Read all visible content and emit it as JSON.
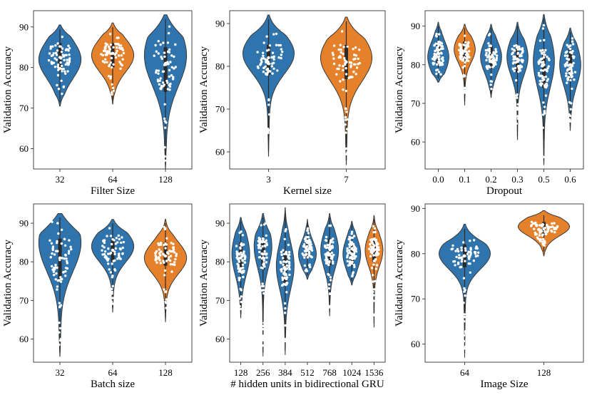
{
  "colors": {
    "blue": "#2f74ad",
    "orange": "#e5812a",
    "outline": "#3a3a3a",
    "dot": "#ffffff"
  },
  "chart_data": [
    {
      "type": "violin",
      "xlabel": "Filter Size",
      "ylabel": "Validation Accuracy",
      "ylim": [
        55,
        94
      ],
      "yticks": [
        60,
        70,
        80,
        90
      ],
      "categories": [
        "32",
        "64",
        "128"
      ],
      "series": [
        {
          "category": "32",
          "color": "blue",
          "min": 70.5,
          "max": 90.5,
          "median": 82.5,
          "q1": 79,
          "q3": 86,
          "mode": 82
        },
        {
          "category": "64",
          "color": "orange",
          "min": 71,
          "max": 91,
          "median": 83.5,
          "q1": 80,
          "q3": 86,
          "mode": 83
        },
        {
          "category": "128",
          "color": "blue",
          "min": 55,
          "max": 93,
          "median": 81,
          "q1": 74,
          "q3": 85,
          "mode": 83
        }
      ]
    },
    {
      "type": "violin",
      "xlabel": "Kernel size",
      "ylabel": "Validation Accuracy",
      "ylim": [
        56,
        93
      ],
      "yticks": [
        60,
        70,
        80,
        90
      ],
      "categories": [
        "3",
        "7"
      ],
      "series": [
        {
          "category": "3",
          "color": "blue",
          "min": 59,
          "max": 92,
          "median": 82,
          "q1": 78,
          "q3": 85,
          "mode": 83
        },
        {
          "category": "7",
          "color": "orange",
          "min": 57,
          "max": 91.5,
          "median": 81,
          "q1": 77,
          "q3": 85,
          "mode": 82
        }
      ]
    },
    {
      "type": "violin",
      "xlabel": "Dropout",
      "ylabel": "Validation Accuracy",
      "ylim": [
        53,
        94
      ],
      "yticks": [
        60,
        70,
        80,
        90
      ],
      "categories": [
        "0.0",
        "0.1",
        "0.2",
        "0.3",
        "0.5",
        "0.6"
      ],
      "series": [
        {
          "category": "0.0",
          "color": "blue",
          "min": 75.5,
          "max": 91,
          "median": 83,
          "q1": 80,
          "q3": 86,
          "mode": 82
        },
        {
          "category": "0.1",
          "color": "orange",
          "min": 69.5,
          "max": 90.5,
          "median": 83.5,
          "q1": 81,
          "q3": 86,
          "mode": 84
        },
        {
          "category": "0.2",
          "color": "blue",
          "min": 71.5,
          "max": 90.5,
          "median": 82,
          "q1": 79,
          "q3": 85,
          "mode": 82
        },
        {
          "category": "0.3",
          "color": "blue",
          "min": 60.5,
          "max": 91,
          "median": 81.5,
          "q1": 78,
          "q3": 85,
          "mode": 82
        },
        {
          "category": "0.5",
          "color": "blue",
          "min": 54,
          "max": 93,
          "median": 80,
          "q1": 74,
          "q3": 84,
          "mode": 81
        },
        {
          "category": "0.6",
          "color": "blue",
          "min": 63,
          "max": 89.5,
          "median": 80,
          "q1": 76,
          "q3": 84,
          "mode": 80
        }
      ]
    },
    {
      "type": "violin",
      "xlabel": "Batch size",
      "ylabel": "Validation Accuracy",
      "ylim": [
        54,
        95
      ],
      "yticks": [
        60,
        70,
        80,
        90
      ],
      "categories": [
        "32",
        "64",
        "128"
      ],
      "series": [
        {
          "category": "32",
          "color": "blue",
          "min": 55.5,
          "max": 92.5,
          "median": 81,
          "q1": 75,
          "q3": 86,
          "mode": 85
        },
        {
          "category": "64",
          "color": "blue",
          "min": 67,
          "max": 91,
          "median": 83,
          "q1": 80,
          "q3": 86,
          "mode": 84
        },
        {
          "category": "128",
          "color": "orange",
          "min": 64.5,
          "max": 91,
          "median": 81.5,
          "q1": 79,
          "q3": 85,
          "mode": 81
        }
      ]
    },
    {
      "type": "violin",
      "xlabel": "# hidden units in bidirectional GRU",
      "ylabel": "Validation Accuracy",
      "ylim": [
        54,
        95
      ],
      "yticks": [
        60,
        70,
        80,
        90
      ],
      "categories": [
        "128",
        "256",
        "384",
        "512",
        "768",
        "1024",
        "1536"
      ],
      "series": [
        {
          "category": "128",
          "color": "blue",
          "min": 65.5,
          "max": 91.5,
          "median": 81,
          "q1": 77,
          "q3": 85,
          "mode": 82
        },
        {
          "category": "256",
          "color": "blue",
          "min": 55.5,
          "max": 92.5,
          "median": 82,
          "q1": 78,
          "q3": 86,
          "mode": 84
        },
        {
          "category": "384",
          "color": "blue",
          "min": 56,
          "max": 94,
          "median": 78,
          "q1": 74,
          "q3": 83,
          "mode": 79
        },
        {
          "category": "512",
          "color": "blue",
          "min": 75.5,
          "max": 91,
          "median": 83,
          "q1": 81,
          "q3": 86,
          "mode": 82
        },
        {
          "category": "768",
          "color": "blue",
          "min": 66,
          "max": 92.5,
          "median": 82,
          "q1": 79,
          "q3": 86,
          "mode": 83
        },
        {
          "category": "1024",
          "color": "blue",
          "min": 74,
          "max": 90.5,
          "median": 82,
          "q1": 79,
          "q3": 85,
          "mode": 82
        },
        {
          "category": "1536",
          "color": "orange",
          "min": 63,
          "max": 92,
          "median": 83,
          "q1": 80,
          "q3": 86,
          "mode": 83
        }
      ]
    },
    {
      "type": "violin",
      "xlabel": "Image Size",
      "ylabel": "Validation Accuracy",
      "ylim": [
        56,
        91
      ],
      "yticks": [
        60,
        70,
        80,
        90
      ],
      "categories": [
        "64",
        "128"
      ],
      "series": [
        {
          "category": "64",
          "color": "blue",
          "min": 57,
          "max": 86.5,
          "median": 79.5,
          "q1": 77,
          "q3": 82,
          "mode": 80
        },
        {
          "category": "128",
          "color": "orange",
          "min": 79.5,
          "max": 89.5,
          "median": 85.5,
          "q1": 84,
          "q3": 87,
          "mode": 86
        }
      ]
    }
  ]
}
